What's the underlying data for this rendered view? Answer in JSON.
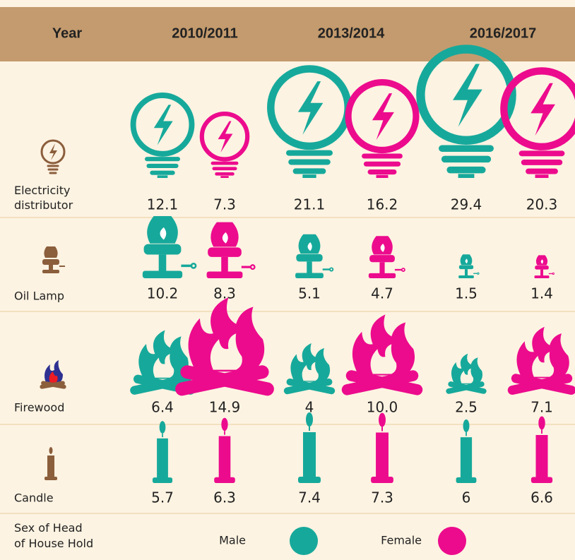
{
  "chart_data": {
    "type": "pictograph",
    "header_label": "Year",
    "periods": [
      "2010/2011",
      "2013/2014",
      "2016/2017"
    ],
    "categories": [
      "Electricity distributor",
      "Oil Lamp",
      "Firewood",
      "Candle"
    ],
    "legend_title": "Sex of Head of House Hold",
    "series": [
      {
        "name": "Male",
        "color": "#16a99b",
        "values": [
          [
            12.1,
            21.1,
            29.4
          ],
          [
            10.2,
            5.1,
            1.5
          ],
          [
            6.4,
            4.0,
            2.5
          ],
          [
            5.7,
            7.4,
            6.0
          ]
        ]
      },
      {
        "name": "Female",
        "color": "#ec0b8d",
        "values": [
          [
            7.3,
            16.2,
            20.3
          ],
          [
            8.3,
            4.7,
            1.4
          ],
          [
            14.9,
            10.0,
            7.1
          ],
          [
            6.3,
            7.3,
            6.6
          ]
        ],
        "value_labels": [
          [
            "7.3",
            "16.2",
            "20.3"
          ],
          [
            "8.3",
            "4.7",
            "1.4"
          ],
          [
            "14.9",
            "10.0",
            "7.1"
          ],
          [
            "6.3",
            "7.3",
            "6.6"
          ]
        ]
      }
    ]
  }
}
